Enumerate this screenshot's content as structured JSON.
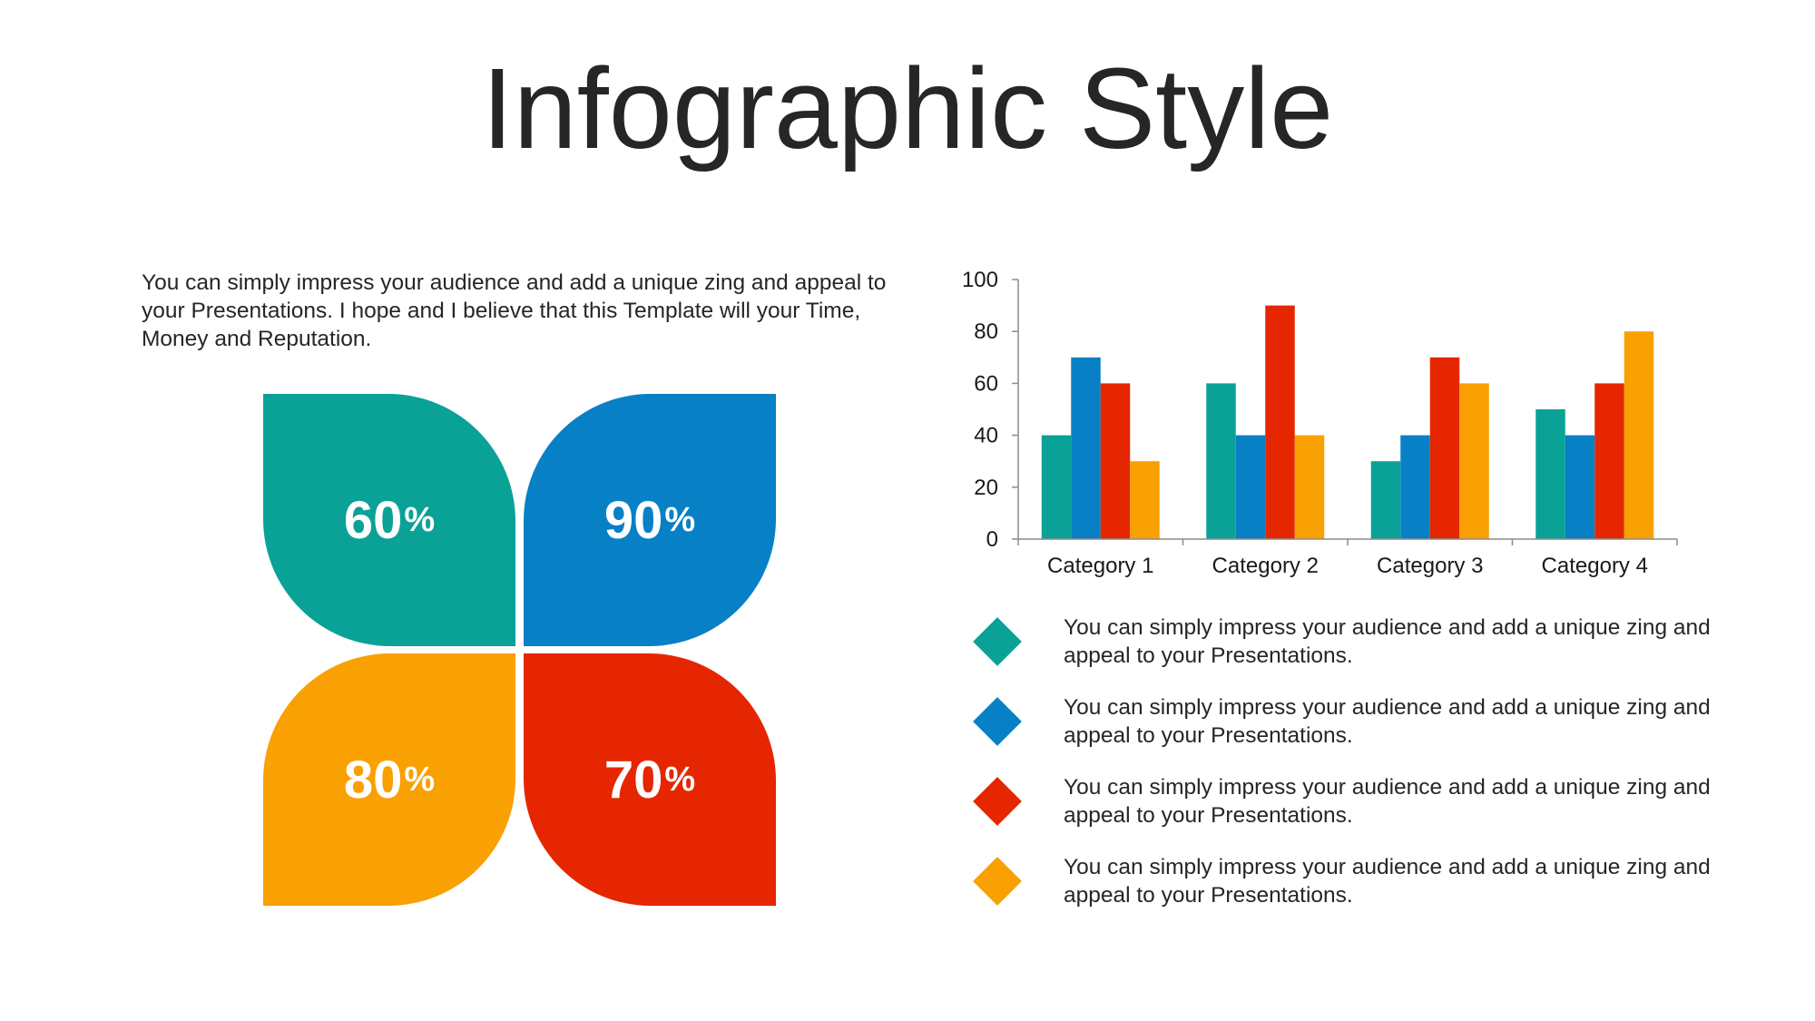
{
  "title": "Infographic Style",
  "intro": "You can simply impress your audience and add a unique zing and appeal to your Presentations. I hope and I believe that this Template will your Time, Money and Reputation.",
  "petals": [
    {
      "value": "60",
      "unit": "%",
      "color": "#0aa297"
    },
    {
      "value": "90",
      "unit": "%",
      "color": "#0880c5"
    },
    {
      "value": "80",
      "unit": "%",
      "color": "#f9a002"
    },
    {
      "value": "70",
      "unit": "%",
      "color": "#e52600"
    }
  ],
  "chart_data": {
    "type": "bar",
    "categories": [
      "Category 1",
      "Category 2",
      "Category 3",
      "Category 4"
    ],
    "series": [
      {
        "values": [
          40,
          60,
          30,
          50
        ],
        "color": "#0aa297"
      },
      {
        "values": [
          70,
          40,
          40,
          40
        ],
        "color": "#0880c5"
      },
      {
        "values": [
          60,
          90,
          70,
          60
        ],
        "color": "#e52600"
      },
      {
        "values": [
          30,
          40,
          60,
          80
        ],
        "color": "#f9a002"
      }
    ],
    "title": "",
    "xlabel": "",
    "ylabel": "",
    "ylim": [
      0,
      100
    ],
    "yticks": [
      0,
      20,
      40,
      60,
      80,
      100
    ],
    "grid": false,
    "legend": "none"
  },
  "legend_items": [
    {
      "text": "You can simply impress your audience and add a unique zing and appeal to your Presentations.",
      "color": "#0aa297"
    },
    {
      "text": "You can simply impress your audience and add a unique zing and appeal to your Presentations.",
      "color": "#0880c5"
    },
    {
      "text": "You can simply impress your audience and add a unique zing and appeal to your Presentations.",
      "color": "#e52600"
    },
    {
      "text": "You can simply impress your audience and add a unique zing and appeal to your Presentations.",
      "color": "#f9a002"
    }
  ]
}
